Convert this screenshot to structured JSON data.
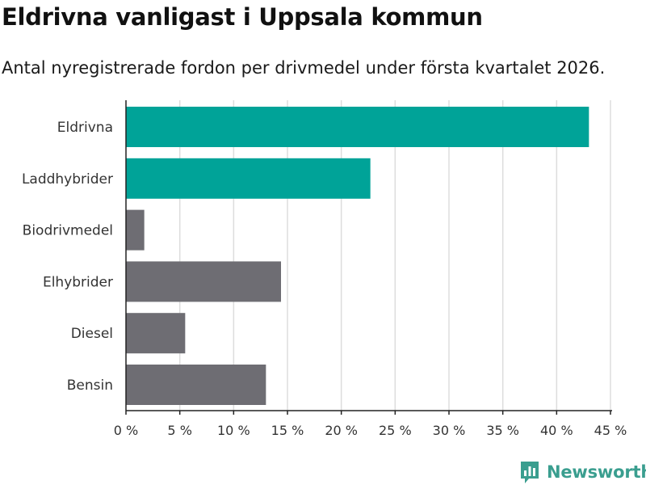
{
  "header": {
    "title": "Eldrivna vanligast i Uppsala kommun",
    "subtitle": "Antal nyregistrerade fordon per drivmedel under första kvartalet 2026."
  },
  "branding": {
    "logo_text": "Newsworthy",
    "logo_icon": "bar-chart-speech-bubble-icon"
  },
  "colors": {
    "highlight": "#00a398",
    "default": "#6e6d73",
    "grid": "#dddddd",
    "brand": "#3a9e8f"
  },
  "chart_data": {
    "type": "bar",
    "orientation": "horizontal",
    "title": "Eldrivna vanligast i Uppsala kommun",
    "subtitle": "Antal nyregistrerade fordon per drivmedel under första kvartalet 2026.",
    "xlabel": "",
    "ylabel": "",
    "categories": [
      "Eldrivna",
      "Laddhybrider",
      "Biodrivmedel",
      "Elhybrider",
      "Diesel",
      "Bensin"
    ],
    "values": [
      43.0,
      22.7,
      1.7,
      14.4,
      5.5,
      13.0
    ],
    "highlighted": [
      true,
      true,
      false,
      false,
      false,
      false
    ],
    "xlim": [
      0,
      45
    ],
    "xticks": [
      0,
      5,
      10,
      15,
      20,
      25,
      30,
      35,
      40,
      45
    ],
    "tick_suffix": " %",
    "grid": true
  }
}
